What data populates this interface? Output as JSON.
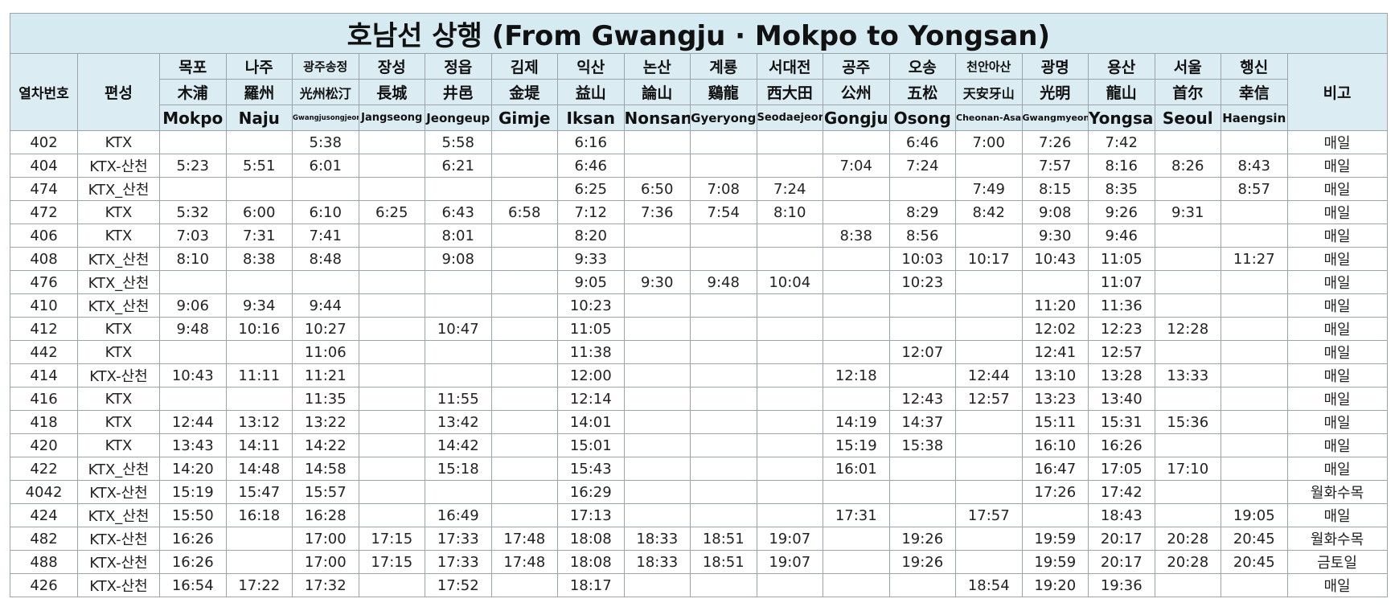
{
  "title": "호남선 상행 (From Gwangju · Mokpo to Yongsan)",
  "header": {
    "train_no": "열차번호",
    "formation": "편성",
    "note": "비고",
    "stations": [
      {
        "ko": "목포",
        "hanja": "木浦",
        "en": "Mokpo"
      },
      {
        "ko": "나주",
        "hanja": "羅州",
        "en": "Naju"
      },
      {
        "ko": "광주송정",
        "hanja": "光州松汀",
        "en": "Gwangjusongjeong"
      },
      {
        "ko": "장성",
        "hanja": "長城",
        "en": "Jangseong"
      },
      {
        "ko": "정읍",
        "hanja": "井邑",
        "en": "Jeongeup"
      },
      {
        "ko": "김제",
        "hanja": "金堤",
        "en": "Gimje"
      },
      {
        "ko": "익산",
        "hanja": "益山",
        "en": "Iksan"
      },
      {
        "ko": "논산",
        "hanja": "論山",
        "en": "Nonsan"
      },
      {
        "ko": "계룡",
        "hanja": "鷄龍",
        "en": "Gyeryong"
      },
      {
        "ko": "서대전",
        "hanja": "西大田",
        "en": "Seodaejeon"
      },
      {
        "ko": "공주",
        "hanja": "公州",
        "en": "Gongju"
      },
      {
        "ko": "오송",
        "hanja": "五松",
        "en": "Osong"
      },
      {
        "ko": "천안아산",
        "hanja": "天安牙山",
        "en": "Cheonan-Asan"
      },
      {
        "ko": "광명",
        "hanja": "光明",
        "en": "Gwangmyeong"
      },
      {
        "ko": "용산",
        "hanja": "龍山",
        "en": "Yongsan"
      },
      {
        "ko": "서울",
        "hanja": "首尔",
        "en": "Seoul"
      },
      {
        "ko": "행신",
        "hanja": "幸信",
        "en": "Haengsin"
      }
    ]
  },
  "rows": [
    [
      "402",
      "KTX",
      null,
      null,
      "5:38",
      null,
      "5:58",
      null,
      "6:16",
      null,
      null,
      null,
      null,
      "6:46",
      "7:00",
      "7:26",
      "7:42",
      null,
      null,
      "매일"
    ],
    [
      "404",
      "KTX-산천",
      "5:23",
      "5:51",
      "6:01",
      null,
      "6:21",
      null,
      "6:46",
      null,
      null,
      null,
      "7:04",
      "7:24",
      null,
      "7:57",
      "8:16",
      "8:26",
      "8:43",
      "매일"
    ],
    [
      "474",
      "KTX_산천",
      null,
      null,
      null,
      null,
      null,
      null,
      "6:25",
      "6:50",
      "7:08",
      "7:24",
      null,
      null,
      "7:49",
      "8:15",
      "8:35",
      null,
      "8:57",
      "매일"
    ],
    [
      "472",
      "KTX",
      "5:32",
      "6:00",
      "6:10",
      "6:25",
      "6:43",
      "6:58",
      "7:12",
      "7:36",
      "7:54",
      "8:10",
      null,
      "8:29",
      "8:42",
      "9:08",
      "9:26",
      "9:31",
      null,
      "매일"
    ],
    [
      "406",
      "KTX",
      "7:03",
      "7:31",
      "7:41",
      null,
      "8:01",
      null,
      "8:20",
      null,
      null,
      null,
      "8:38",
      "8:56",
      null,
      "9:30",
      "9:46",
      null,
      null,
      "매일"
    ],
    [
      "408",
      "KTX_산천",
      "8:10",
      "8:38",
      "8:48",
      null,
      "9:08",
      null,
      "9:33",
      null,
      null,
      null,
      null,
      "10:03",
      "10:17",
      "10:43",
      "11:05",
      null,
      "11:27",
      "매일"
    ],
    [
      "476",
      "KTX_산천",
      null,
      null,
      null,
      null,
      null,
      null,
      "9:05",
      "9:30",
      "9:48",
      "10:04",
      null,
      "10:23",
      null,
      null,
      "11:07",
      null,
      null,
      "매일"
    ],
    [
      "410",
      "KTX_산천",
      "9:06",
      "9:34",
      "9:44",
      null,
      null,
      null,
      "10:23",
      null,
      null,
      null,
      null,
      null,
      null,
      "11:20",
      "11:36",
      null,
      null,
      "매일"
    ],
    [
      "412",
      "KTX",
      "9:48",
      "10:16",
      "10:27",
      null,
      "10:47",
      null,
      "11:05",
      null,
      null,
      null,
      null,
      null,
      null,
      "12:02",
      "12:23",
      "12:28",
      null,
      "매일"
    ],
    [
      "442",
      "KTX",
      null,
      null,
      "11:06",
      null,
      null,
      null,
      "11:38",
      null,
      null,
      null,
      null,
      "12:07",
      null,
      "12:41",
      "12:57",
      null,
      null,
      "매일"
    ],
    [
      "414",
      "KTX-산천",
      "10:43",
      "11:11",
      "11:21",
      null,
      null,
      null,
      "12:00",
      null,
      null,
      null,
      "12:18",
      null,
      "12:44",
      "13:10",
      "13:28",
      "13:33",
      null,
      "매일"
    ],
    [
      "416",
      "KTX",
      null,
      null,
      "11:35",
      null,
      "11:55",
      null,
      "12:14",
      null,
      null,
      null,
      null,
      "12:43",
      "12:57",
      "13:23",
      "13:40",
      null,
      null,
      "매일"
    ],
    [
      "418",
      "KTX",
      "12:44",
      "13:12",
      "13:22",
      null,
      "13:42",
      null,
      "14:01",
      null,
      null,
      null,
      "14:19",
      "14:37",
      null,
      "15:11",
      "15:31",
      "15:36",
      null,
      "매일"
    ],
    [
      "420",
      "KTX",
      "13:43",
      "14:11",
      "14:22",
      null,
      "14:42",
      null,
      "15:01",
      null,
      null,
      null,
      "15:19",
      "15:38",
      null,
      "16:10",
      "16:26",
      null,
      null,
      "매일"
    ],
    [
      "422",
      "KTX_산천",
      "14:20",
      "14:48",
      "14:58",
      null,
      "15:18",
      null,
      "15:43",
      null,
      null,
      null,
      "16:01",
      null,
      null,
      "16:47",
      "17:05",
      "17:10",
      null,
      "매일"
    ],
    [
      "4042",
      "KTX-산천",
      "15:19",
      "15:47",
      "15:57",
      null,
      null,
      null,
      "16:29",
      null,
      null,
      null,
      null,
      null,
      null,
      "17:26",
      "17:42",
      null,
      null,
      "월화수목"
    ],
    [
      "424",
      "KTX_산천",
      "15:50",
      "16:18",
      "16:28",
      null,
      "16:49",
      null,
      "17:13",
      null,
      null,
      null,
      "17:31",
      null,
      "17:57",
      null,
      "18:43",
      null,
      "19:05",
      "매일"
    ],
    [
      "482",
      "KTX-산천",
      "16:26",
      null,
      "17:00",
      "17:15",
      "17:33",
      "17:48",
      "18:08",
      "18:33",
      "18:51",
      "19:07",
      null,
      "19:26",
      null,
      "19:59",
      "20:17",
      "20:28",
      "20:45",
      "월화수목"
    ],
    [
      "488",
      "KTX-산천",
      "16:26",
      null,
      "17:00",
      "17:15",
      "17:33",
      "17:48",
      "18:08",
      "18:33",
      "18:51",
      "19:07",
      null,
      "19:26",
      null,
      "19:59",
      "20:17",
      "20:28",
      "20:45",
      "금토일"
    ],
    [
      "426",
      "KTX-산천",
      "16:54",
      "17:22",
      "17:32",
      null,
      "17:52",
      null,
      "18:17",
      null,
      null,
      null,
      null,
      null,
      "18:54",
      "19:20",
      "19:36",
      null,
      null,
      "매일"
    ]
  ]
}
